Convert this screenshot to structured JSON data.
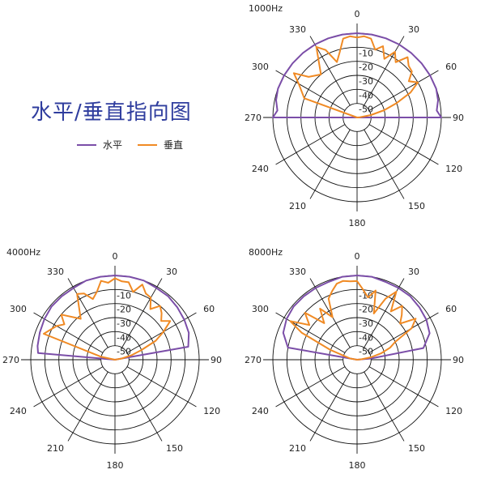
{
  "title": "水平/垂直指向图",
  "legend": [
    {
      "label": "水平",
      "color": "#7b4ea8"
    },
    {
      "label": "垂直",
      "color": "#f08a24"
    }
  ],
  "chart_data": [
    {
      "type": "polar",
      "title": "1000Hz",
      "angle_labels": [
        "0",
        "30",
        "60",
        "90",
        "120",
        "150",
        "180",
        "210",
        "240",
        "270",
        "300",
        "330"
      ],
      "ring_labels": [
        "-10",
        "-20",
        "-30",
        "-40",
        "-50"
      ],
      "rlim": [
        -60,
        0
      ],
      "series": [
        {
          "name": "水平",
          "angles": [
            270,
            275,
            282,
            290,
            300,
            310,
            320,
            330,
            340,
            350,
            0,
            10,
            20,
            30,
            40,
            50,
            60,
            70,
            78,
            85,
            90
          ],
          "values": [
            0,
            -3,
            -1,
            0,
            0,
            0,
            0,
            0,
            0,
            0,
            0,
            0,
            0,
            0,
            0,
            0,
            0,
            0,
            -1,
            -3,
            0
          ]
        },
        {
          "name": "垂直",
          "angles": [
            270,
            280,
            290,
            300,
            305,
            310,
            320,
            330,
            335,
            340,
            345,
            350,
            355,
            0,
            5,
            10,
            15,
            20,
            25,
            30,
            35,
            40,
            45,
            50,
            55,
            60,
            65,
            70,
            75,
            80,
            85,
            90
          ],
          "values": [
            -60,
            -60,
            -20,
            -12,
            -5,
            -15,
            -20,
            -2,
            -7,
            -18,
            -12,
            -3,
            -2,
            -3,
            -2,
            -3,
            -10,
            -6,
            -14,
            -6,
            -12,
            -4,
            -8,
            -9,
            -15,
            -10,
            -18,
            -30,
            -40,
            -50,
            -58,
            -60
          ]
        }
      ]
    },
    {
      "type": "polar",
      "title": "4000Hz",
      "angle_labels": [
        "0",
        "30",
        "60",
        "90",
        "120",
        "150",
        "180",
        "210",
        "240",
        "270",
        "300",
        "330"
      ],
      "ring_labels": [
        "-10",
        "-20",
        "-30",
        "-40",
        "-50"
      ],
      "rlim": [
        -60,
        0
      ],
      "series": [
        {
          "name": "水平",
          "angles": [
            270,
            272,
            275,
            280,
            290,
            300,
            310,
            320,
            330,
            340,
            350,
            0,
            10,
            20,
            30,
            40,
            50,
            60,
            70,
            80,
            88,
            90
          ],
          "values": [
            -60,
            -60,
            -5,
            -4,
            -3,
            -2,
            -1,
            -1,
            -1,
            0,
            0,
            0,
            0,
            0,
            -1,
            -1,
            -2,
            -3,
            -4,
            -7,
            -60,
            -60
          ]
        },
        {
          "name": "垂直",
          "angles": [
            270,
            275,
            282,
            290,
            300,
            305,
            310,
            320,
            330,
            335,
            340,
            345,
            350,
            355,
            0,
            5,
            10,
            15,
            20,
            25,
            30,
            35,
            40,
            45,
            50,
            55,
            60,
            65,
            70,
            75,
            80,
            85,
            90
          ],
          "values": [
            -60,
            -60,
            -50,
            -6,
            -12,
            -16,
            -10,
            -22,
            -6,
            -8,
            -14,
            -10,
            -3,
            -5,
            -2,
            -4,
            -4,
            -10,
            -3,
            -8,
            -9,
            -16,
            -10,
            -13,
            -17,
            -12,
            -20,
            -28,
            -40,
            -48,
            -55,
            -60,
            -60
          ]
        }
      ]
    },
    {
      "type": "polar",
      "title": "8000Hz",
      "angle_labels": [
        "0",
        "30",
        "60",
        "90",
        "120",
        "150",
        "180",
        "210",
        "240",
        "270",
        "300",
        "330"
      ],
      "ring_labels": [
        "-10",
        "-20",
        "-30",
        "-40",
        "-50"
      ],
      "rlim": [
        -60,
        0
      ],
      "series": [
        {
          "name": "水平",
          "angles": [
            270,
            275,
            280,
            290,
            300,
            310,
            320,
            330,
            340,
            350,
            0,
            10,
            20,
            30,
            40,
            50,
            60,
            70,
            80,
            85,
            88,
            90
          ],
          "values": [
            -60,
            -60,
            -10,
            -4,
            -2,
            -1,
            -1,
            -1,
            -1,
            0,
            0,
            0,
            -1,
            -1,
            -1,
            -2,
            -3,
            -5,
            -12,
            -50,
            -60,
            -60
          ]
        },
        {
          "name": "垂直",
          "angles": [
            270,
            280,
            290,
            296,
            300,
            306,
            312,
            318,
            324,
            330,
            335,
            340,
            345,
            350,
            355,
            0,
            5,
            10,
            15,
            20,
            25,
            30,
            35,
            40,
            45,
            50,
            55,
            60,
            65,
            70,
            75,
            80,
            85,
            90
          ],
          "values": [
            -60,
            -55,
            -40,
            -16,
            -5,
            -18,
            -10,
            -25,
            -15,
            -25,
            -12,
            -8,
            -4,
            -3,
            -4,
            -4,
            -10,
            -15,
            -9,
            -25,
            -12,
            -4,
            -18,
            -10,
            -15,
            -20,
            -9,
            -15,
            -30,
            -35,
            -42,
            -50,
            -57,
            -60
          ]
        }
      ]
    }
  ]
}
